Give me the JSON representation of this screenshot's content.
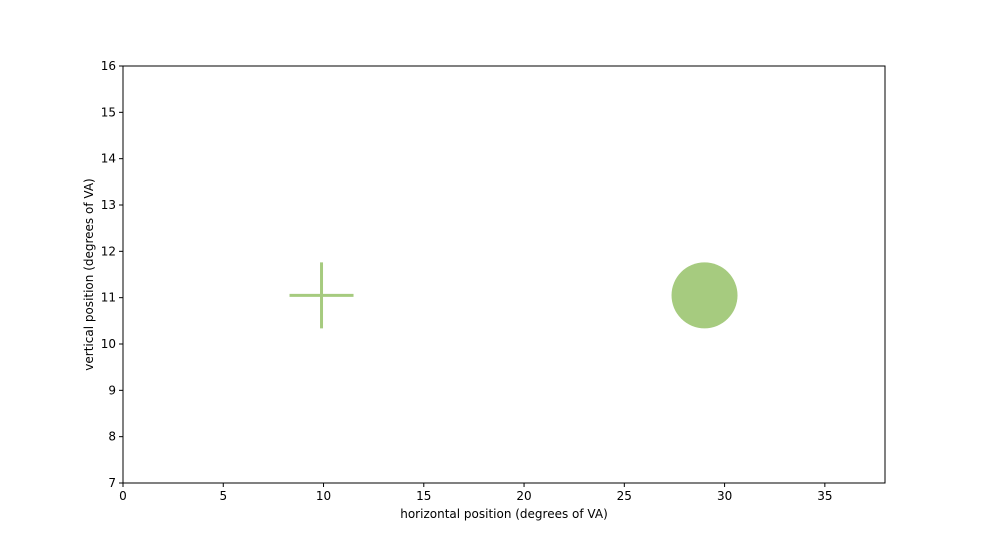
{
  "chart_data": {
    "type": "scatter",
    "title": "",
    "xlabel": "horizontal position (degrees of VA)",
    "ylabel": "vertical position (degrees of VA)",
    "xlim": [
      0,
      38
    ],
    "ylim": [
      7,
      16
    ],
    "xticks": [
      "0",
      "5",
      "10",
      "15",
      "20",
      "25",
      "30",
      "35"
    ],
    "yticks": [
      "7",
      "8",
      "9",
      "10",
      "11",
      "12",
      "13",
      "14",
      "15",
      "16"
    ],
    "grid": false,
    "legend": "none",
    "series": [
      {
        "marker": "plus",
        "color": "#a6cb7f",
        "points": [
          {
            "x": 9.9,
            "y": 11.05
          }
        ]
      },
      {
        "marker": "circle",
        "color": "#a6cb7f",
        "points": [
          {
            "x": 29.0,
            "y": 11.05
          }
        ]
      }
    ]
  }
}
